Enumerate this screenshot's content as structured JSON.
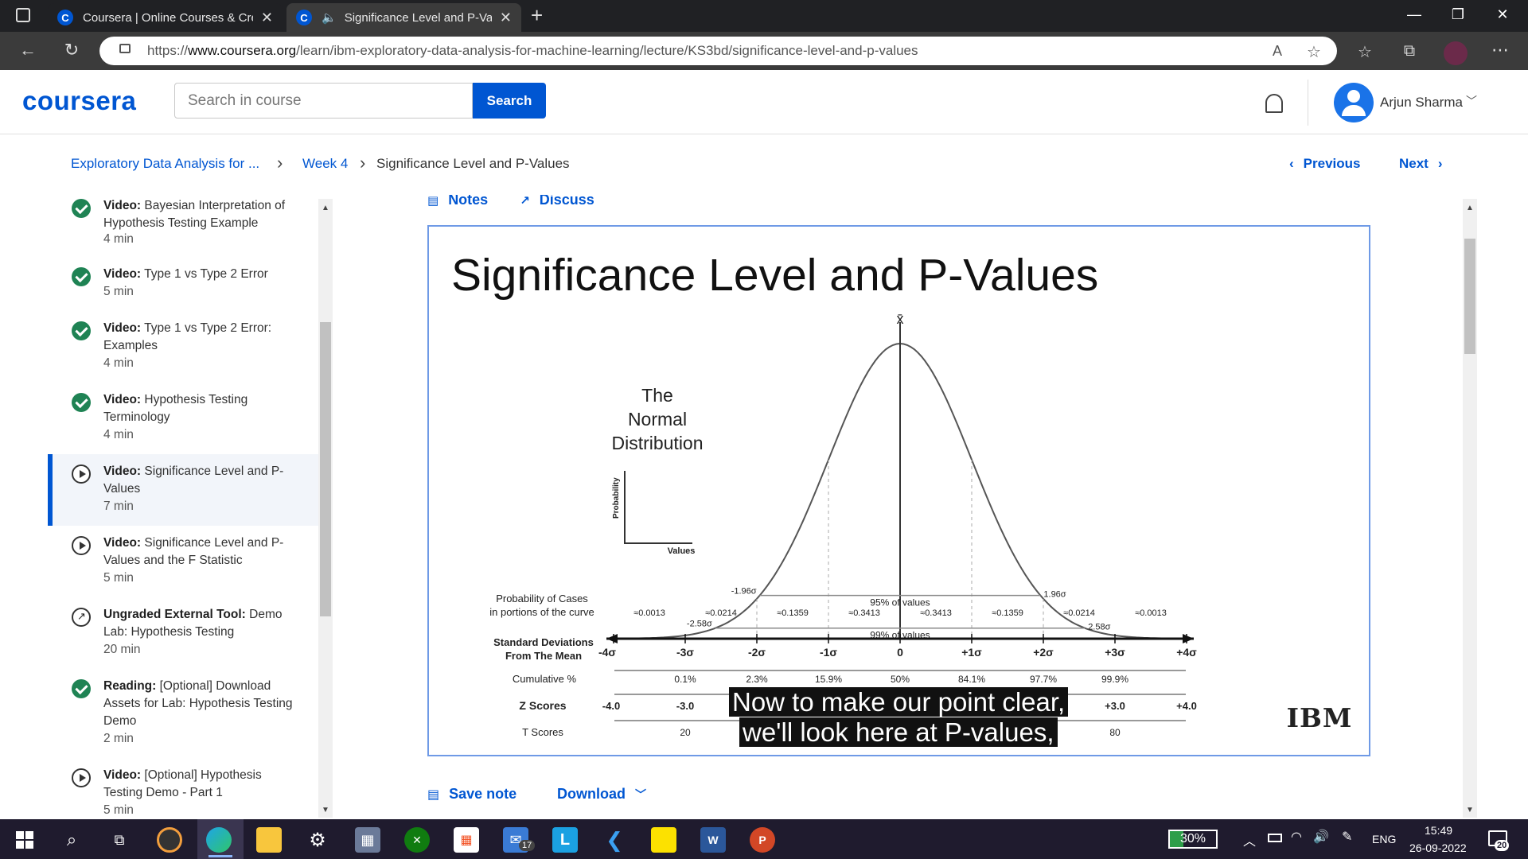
{
  "browser": {
    "tabs": [
      {
        "label": "Coursera | Online Courses & Cre",
        "favicon": "C"
      },
      {
        "label": "Significance Level and P-Val",
        "favicon": "C"
      }
    ],
    "new_tab_symbol": "+",
    "url_prefix": "https://",
    "url_domain": "www.coursera.org",
    "url_path": "/learn/ibm-exploratory-data-analysis-for-machine-learning/lecture/KS3bd/significance-level-and-p-values"
  },
  "header": {
    "logo": "coursera",
    "search_placeholder": "Search in course",
    "search_button": "Search",
    "user_name": "Arjun Sharma"
  },
  "breadcrumb": {
    "course": "Exploratory Data Analysis for ...",
    "week": "Week 4",
    "lecture": "Significance Level and P-Values",
    "previous": "Previous",
    "next": "Next"
  },
  "sidebar": {
    "items": [
      {
        "kind": "Video:",
        "title": "Bayesian Interpretation of Hypothesis Testing Example",
        "duration": "4 min",
        "status": "done"
      },
      {
        "kind": "Video:",
        "title": "Type 1 vs Type 2 Error",
        "duration": "5 min",
        "status": "done"
      },
      {
        "kind": "Video:",
        "title": "Type 1 vs Type 2 Error: Examples",
        "duration": "4 min",
        "status": "done"
      },
      {
        "kind": "Video:",
        "title": "Hypothesis Testing Terminology",
        "duration": "4 min",
        "status": "done"
      },
      {
        "kind": "Video:",
        "title": "Significance Level and P-Values",
        "duration": "7 min",
        "status": "current"
      },
      {
        "kind": "Video:",
        "title": "Significance Level and P-Values and the F Statistic",
        "duration": "5 min",
        "status": "play"
      },
      {
        "kind": "Ungraded External Tool:",
        "title": "Demo Lab: Hypothesis Testing",
        "duration": "20 min",
        "status": "external"
      },
      {
        "kind": "Reading:",
        "title": "[Optional] Download Assets for Lab: Hypothesis Testing Demo",
        "duration": "2 min",
        "status": "done"
      },
      {
        "kind": "Video:",
        "title": "[Optional] Hypothesis Testing Demo - Part 1",
        "duration": "5 min",
        "status": "play"
      }
    ]
  },
  "lecture_tabs": {
    "notes": "Notes",
    "discuss": "Discuss"
  },
  "slide": {
    "title": "Significance Level and P-Values",
    "xbar": "x̄",
    "inset_title": [
      "The",
      "Normal",
      "Distribution"
    ],
    "inset_y": "Probability",
    "inset_x": "Values",
    "label_95": "95% of values",
    "label_99": "99% of values",
    "z196_left": "-1.96σ",
    "z196_right": "1.96σ",
    "z258_left": "-2.58σ",
    "z258_right": "2.58σ",
    "prob_label": [
      "Probability of Cases",
      "in portions of the curve"
    ],
    "probabilities": [
      "≈0.0013",
      "≈0.0214",
      "≈0.1359",
      "≈0.3413",
      "≈0.3413",
      "≈0.1359",
      "≈0.0214",
      "≈0.0013"
    ],
    "sd_label": [
      "Standard Deviations",
      "From The Mean"
    ],
    "sd_ticks": [
      "-4σ",
      "-3σ",
      "-2σ",
      "-1σ",
      "0",
      "+1σ",
      "+2σ",
      "+3σ",
      "+4σ"
    ],
    "cum_label": "Cumulative %",
    "cum_values": [
      "0.1%",
      "2.3%",
      "15.9%",
      "50%",
      "84.1%",
      "97.7%",
      "99.9%"
    ],
    "z_label": "Z Scores",
    "z_values": [
      "-4.0",
      "-3.0",
      "+3.0",
      "+4.0"
    ],
    "t_label": "T Scores",
    "t_values": [
      "20",
      "80"
    ],
    "logo": "IBM"
  },
  "caption": [
    "Now to make our point clear,",
    "we'll look here at P-values,"
  ],
  "actions": {
    "save_note": "Save note",
    "download": "Download"
  },
  "taskbar": {
    "battery": "30%",
    "lang": "ENG",
    "time": "15:49",
    "date": "26-09-2022",
    "mail_badge": "17",
    "notif_badge": "20"
  },
  "colors": {
    "brand": "#0056d2",
    "complete": "#1f8354",
    "current_bar": "#0056d2"
  }
}
